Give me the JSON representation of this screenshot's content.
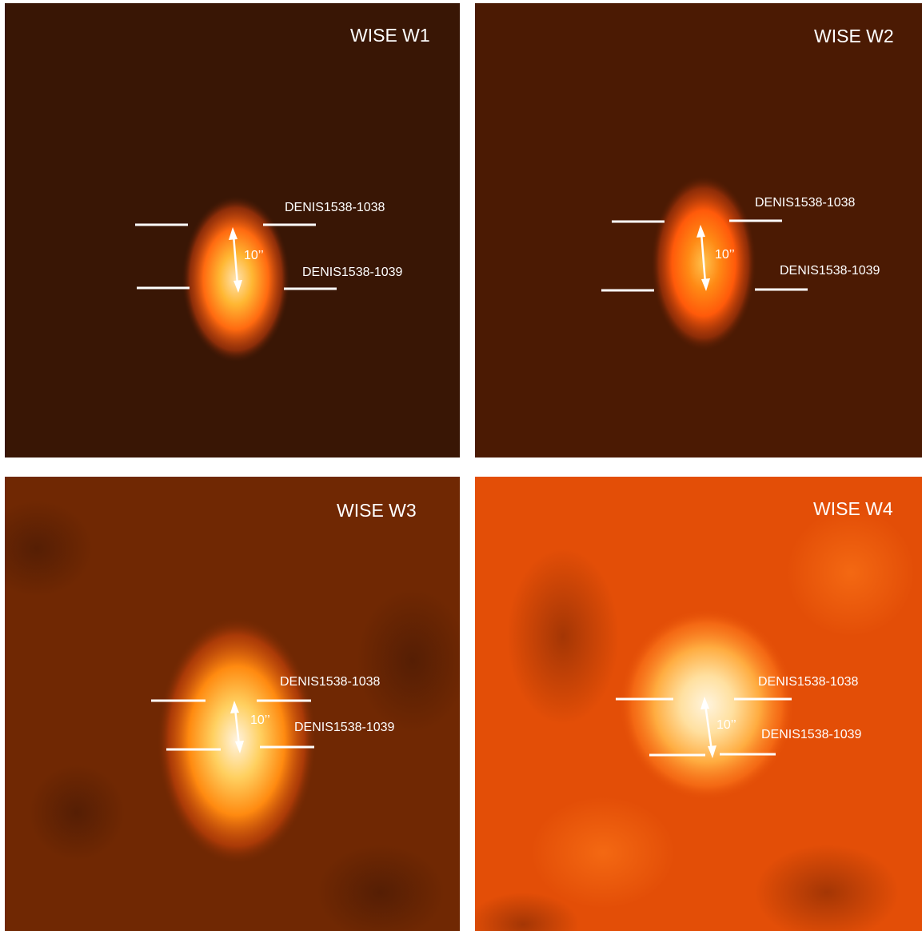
{
  "panels": [
    {
      "band": "WISE W1",
      "label_upper": "DENIS1538-1038",
      "label_lower": "DENIS1538-1039",
      "separation": "10’’",
      "background": "#391605",
      "glow": [
        "#ffe3b0",
        "#ffb733",
        "#ff6a10",
        "#c33d0c"
      ]
    },
    {
      "band": "WISE W2",
      "label_upper": "DENIS1538-1038",
      "label_lower": "DENIS1538-1039",
      "separation": "10’’",
      "background": "#4b1a03",
      "glow": [
        "#ffc24d",
        "#ff8a15",
        "#ff5a0a",
        "#b8390a"
      ]
    },
    {
      "band": "WISE W3",
      "label_upper": "DENIS1538-1038",
      "label_lower": "DENIS1538-1039",
      "separation": "10’’",
      "background": "#702803",
      "glow": [
        "#fff3e0",
        "#ffd060",
        "#ff8a10",
        "#d0460a"
      ]
    },
    {
      "band": "WISE W4",
      "label_upper": "DENIS1538-1038",
      "label_lower": "DENIS1538-1039",
      "separation": "10’’",
      "background": "#e34e07",
      "glow": [
        "#fff4de",
        "#ffe0a0",
        "#ffac40",
        "#ff7a1c"
      ]
    }
  ]
}
